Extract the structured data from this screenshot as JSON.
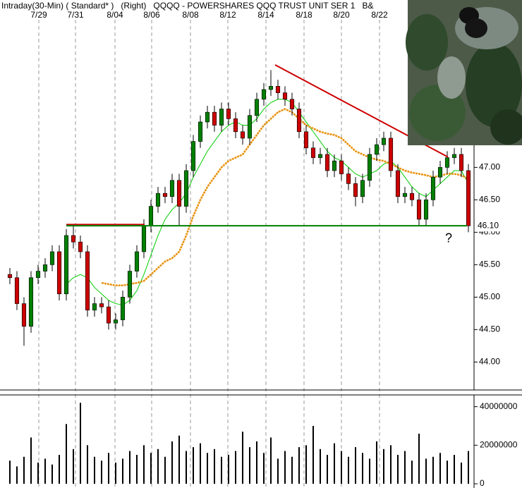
{
  "chart_data": [
    {
      "type": "candlestick",
      "title": "Intraday(30-Min) ( Standard* )   (Right)   QQQQ - POWERSHARES QQQ TRUST UNIT SER 1   B&",
      "x": [
        0,
        1,
        2,
        3,
        4,
        5,
        6,
        7,
        8,
        9,
        10,
        11,
        12,
        13,
        14,
        15,
        16,
        17,
        18,
        19,
        20,
        21,
        22,
        23,
        24,
        25,
        26,
        27,
        28,
        29,
        30,
        31,
        32,
        33,
        34,
        35,
        36,
        37,
        38,
        39,
        40,
        41,
        42,
        43,
        44,
        45,
        46,
        47,
        48,
        49,
        50,
        51,
        52,
        53,
        54,
        55,
        56,
        57,
        58,
        59,
        60,
        61,
        62,
        63,
        64,
        65
      ],
      "open": [
        45.35,
        45.3,
        44.9,
        44.55,
        45.3,
        45.4,
        45.5,
        45.7,
        45.05,
        45.95,
        45.85,
        45.7,
        44.8,
        44.9,
        44.85,
        44.6,
        44.65,
        45.0,
        45.4,
        45.7,
        46.1,
        46.4,
        46.6,
        46.55,
        46.8,
        46.4,
        46.95,
        47.4,
        47.7,
        47.85,
        47.65,
        47.9,
        47.75,
        47.55,
        47.45,
        47.8,
        48.05,
        48.2,
        48.25,
        48.15,
        48.05,
        47.9,
        47.55,
        47.3,
        47.15,
        47.2,
        46.95,
        47.1,
        46.9,
        46.75,
        46.55,
        46.8,
        47.2,
        47.35,
        47.45,
        46.95,
        46.55,
        46.6,
        46.5,
        46.2,
        46.5,
        46.85,
        47.0,
        47.15,
        47.2,
        46.95
      ],
      "high": [
        45.45,
        45.4,
        45.0,
        45.4,
        45.5,
        45.6,
        45.8,
        45.8,
        46.05,
        46.12,
        45.95,
        45.8,
        45.0,
        45.0,
        44.95,
        44.75,
        45.1,
        45.5,
        45.8,
        46.2,
        46.5,
        46.7,
        46.7,
        46.9,
        46.9,
        47.05,
        47.5,
        47.8,
        47.95,
        47.95,
        48.0,
        48.0,
        47.85,
        47.65,
        47.9,
        48.15,
        48.3,
        48.5,
        48.35,
        48.25,
        48.15,
        48.0,
        47.65,
        47.4,
        47.3,
        47.3,
        47.2,
        47.2,
        47.0,
        46.85,
        46.9,
        47.3,
        47.45,
        47.55,
        47.55,
        47.05,
        46.7,
        46.7,
        46.6,
        46.6,
        46.95,
        47.1,
        47.25,
        47.3,
        47.3,
        47.05
      ],
      "low": [
        45.2,
        44.8,
        44.25,
        44.45,
        45.2,
        45.3,
        45.4,
        44.95,
        44.95,
        45.75,
        45.6,
        44.7,
        44.7,
        44.75,
        44.5,
        44.5,
        44.55,
        44.9,
        45.3,
        45.6,
        46.0,
        46.3,
        46.45,
        46.45,
        46.1,
        46.3,
        46.85,
        47.3,
        47.6,
        47.55,
        47.55,
        47.65,
        47.45,
        47.35,
        47.35,
        47.7,
        47.95,
        48.1,
        48.05,
        47.95,
        47.8,
        47.45,
        47.2,
        47.05,
        47.05,
        46.85,
        46.85,
        46.8,
        46.65,
        46.4,
        46.45,
        46.7,
        47.1,
        47.25,
        46.85,
        46.45,
        46.45,
        46.4,
        46.1,
        46.1,
        46.4,
        46.75,
        46.9,
        47.05,
        46.85,
        46.0
      ],
      "close": [
        45.3,
        44.9,
        44.55,
        45.3,
        45.4,
        45.5,
        45.7,
        45.05,
        45.95,
        45.85,
        45.7,
        44.8,
        44.9,
        44.85,
        44.6,
        44.65,
        45.0,
        45.4,
        45.7,
        46.1,
        46.4,
        46.6,
        46.55,
        46.8,
        46.4,
        46.95,
        47.4,
        47.7,
        47.85,
        47.65,
        47.9,
        47.75,
        47.55,
        47.45,
        47.8,
        48.05,
        48.2,
        48.25,
        48.15,
        48.05,
        47.9,
        47.55,
        47.3,
        47.15,
        47.2,
        46.95,
        47.1,
        46.9,
        46.75,
        46.55,
        46.8,
        47.2,
        47.35,
        47.45,
        46.95,
        46.55,
        46.6,
        46.5,
        46.2,
        46.5,
        46.85,
        47.0,
        47.15,
        47.2,
        46.95,
        46.1
      ],
      "up_color": "#008000",
      "down_color": "#cc0000",
      "series": [
        {
          "color": "#00cc00",
          "values": [
            null,
            null,
            null,
            null,
            null,
            null,
            null,
            null,
            45.2,
            45.3,
            45.35,
            45.3,
            45.15,
            45.05,
            44.95,
            44.9,
            44.88,
            44.95,
            45.1,
            45.35,
            45.65,
            45.95,
            46.2,
            46.35,
            46.45,
            46.6,
            46.85,
            47.05,
            47.25,
            47.4,
            47.55,
            47.65,
            47.7,
            47.65,
            47.65,
            47.75,
            47.9,
            48.0,
            48.05,
            48.05,
            48.0,
            47.85,
            47.7,
            47.55,
            47.4,
            47.25,
            47.15,
            47.1,
            47.0,
            46.9,
            46.85,
            46.9,
            46.95,
            47.05,
            47.1,
            47.0,
            46.85,
            46.7,
            46.6,
            46.55,
            46.65,
            46.75,
            46.85,
            46.95,
            46.95,
            46.75
          ]
        },
        {
          "color": "#e8900a",
          "values": [
            null,
            null,
            null,
            null,
            null,
            null,
            null,
            null,
            null,
            null,
            null,
            null,
            null,
            45.22,
            45.2,
            45.18,
            45.18,
            45.2,
            45.22,
            45.25,
            45.35,
            45.45,
            45.55,
            45.6,
            45.7,
            45.95,
            46.25,
            46.5,
            46.7,
            46.85,
            47.0,
            47.1,
            47.15,
            47.2,
            47.35,
            47.5,
            47.65,
            47.75,
            47.85,
            47.9,
            47.85,
            47.75,
            47.65,
            47.6,
            47.55,
            47.52,
            47.5,
            47.45,
            47.35,
            47.25,
            47.2,
            47.15,
            47.12,
            47.1,
            47.05,
            47.0,
            46.95,
            46.92,
            46.9,
            46.88,
            46.85,
            46.87,
            46.9,
            46.9,
            46.88,
            46.82
          ]
        }
      ],
      "lines": [
        {
          "x": [
            8.0,
            19.1
          ],
          "y": [
            46.12,
            46.12
          ],
          "color": "#cc0000"
        },
        {
          "x": [
            37.6,
            62.1
          ],
          "y": [
            48.58,
            47.16
          ],
          "color": "#cc0000"
        },
        {
          "x": [
            8.0,
            64.8
          ],
          "y": [
            46.1,
            46.1
          ],
          "color": "#008000",
          "label": "46.10"
        }
      ],
      "annotations": [
        {
          "text": "?",
          "x": 62.2,
          "y": 45.9,
          "color": "#006600"
        }
      ],
      "xlim": [
        -1.4,
        65.4
      ],
      "xticks": [
        {
          "value": 4.1,
          "label": "7/29"
        },
        {
          "value": 9.3,
          "label": "7/31"
        },
        {
          "value": 14.9,
          "label": "8/04"
        },
        {
          "value": 20.1,
          "label": "8/06"
        },
        {
          "value": 25.6,
          "label": "8/08"
        },
        {
          "value": 30.9,
          "label": "8/12"
        },
        {
          "value": 36.3,
          "label": "8/14"
        },
        {
          "value": 41.7,
          "label": "8/18"
        },
        {
          "value": 47.0,
          "label": "8/20"
        },
        {
          "value": 52.4,
          "label": "8/22"
        }
      ],
      "ylim": [
        43.58,
        49.58
      ],
      "yticks": [
        {
          "value": 44,
          "label": "44.00"
        },
        {
          "value": 44.5,
          "label": "44.50"
        },
        {
          "value": 45,
          "label": "45.00"
        },
        {
          "value": 45.5,
          "label": "45.50"
        },
        {
          "value": 46,
          "label": "46.00"
        },
        {
          "value": 46.5,
          "label": "46.50"
        },
        {
          "value": 47,
          "label": "47.00"
        }
      ],
      "grid": true
    },
    {
      "type": "bar",
      "x": [
        0,
        1,
        2,
        3,
        4,
        5,
        6,
        7,
        8,
        9,
        10,
        11,
        12,
        13,
        14,
        15,
        16,
        17,
        18,
        19,
        20,
        21,
        22,
        23,
        24,
        25,
        26,
        27,
        28,
        29,
        30,
        31,
        32,
        33,
        34,
        35,
        36,
        37,
        38,
        39,
        40,
        41,
        42,
        43,
        44,
        45,
        46,
        47,
        48,
        49,
        50,
        51,
        52,
        53,
        54,
        55,
        56,
        57,
        58,
        59,
        60,
        61,
        62,
        63,
        64,
        65
      ],
      "values": [
        12000000,
        9000000,
        14000000,
        24000000,
        11000000,
        13000000,
        10000000,
        15000000,
        31000000,
        18000000,
        42000000,
        20000000,
        14000000,
        12000000,
        16000000,
        11000000,
        13000000,
        17000000,
        15000000,
        20000000,
        16000000,
        18000000,
        14000000,
        22000000,
        25000000,
        17000000,
        19000000,
        21000000,
        16000000,
        18000000,
        14000000,
        15000000,
        17000000,
        27000000,
        19000000,
        22000000,
        16000000,
        24000000,
        13000000,
        17000000,
        14000000,
        19000000,
        20000000,
        30000000,
        18000000,
        15000000,
        21000000,
        17000000,
        14000000,
        19000000,
        16000000,
        13000000,
        22000000,
        18000000,
        20000000,
        15000000,
        17000000,
        12000000,
        26000000,
        13000000,
        14000000,
        16000000,
        12000000,
        15000000,
        11000000,
        17000000
      ],
      "color": "#000000",
      "xlim": [
        -1.4,
        65.4
      ],
      "ylim": [
        0,
        45000000
      ],
      "yticks": [
        0,
        20000000,
        40000000
      ]
    }
  ]
}
